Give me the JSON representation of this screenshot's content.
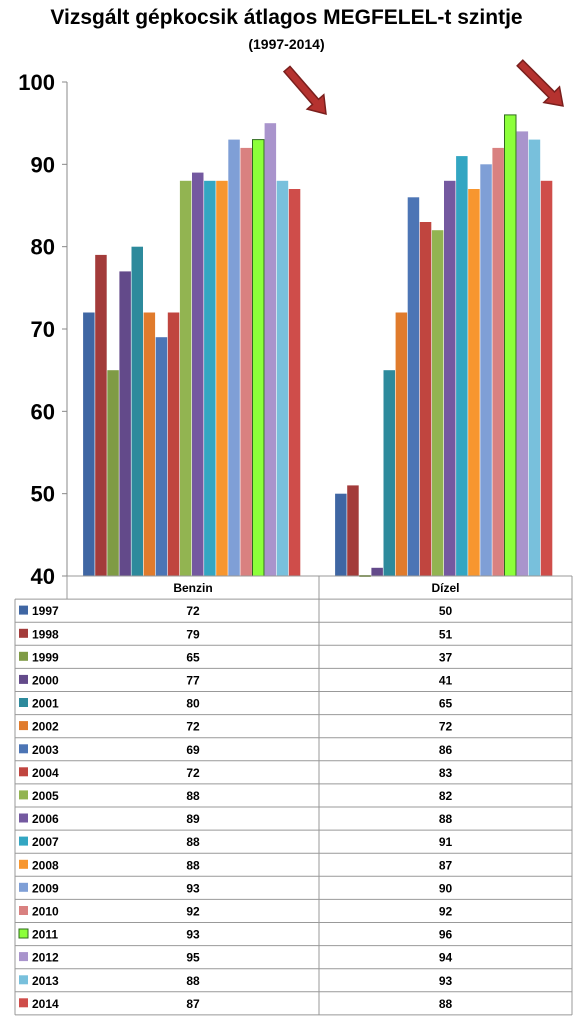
{
  "chart_data": {
    "type": "bar",
    "title": "Vizsgált gépkocsik átlagos MEGFELEL-t szintje",
    "subtitle": "(1997-2014)",
    "categories": [
      "Benzin",
      "Dízel"
    ],
    "ylim": [
      40,
      100
    ],
    "yticks": [
      40,
      50,
      60,
      70,
      80,
      90,
      100
    ],
    "grid": false,
    "legend": "data-table",
    "series": [
      {
        "name": "1997",
        "color": "#3f66a3",
        "values": [
          72,
          50
        ]
      },
      {
        "name": "1998",
        "color": "#a33b3a",
        "values": [
          79,
          51
        ]
      },
      {
        "name": "1999",
        "color": "#7f9b45",
        "values": [
          65,
          37
        ]
      },
      {
        "name": "2000",
        "color": "#634a8a",
        "values": [
          77,
          41
        ]
      },
      {
        "name": "2001",
        "color": "#2d8a9c",
        "values": [
          80,
          65
        ]
      },
      {
        "name": "2002",
        "color": "#e07b2c",
        "values": [
          72,
          72
        ]
      },
      {
        "name": "2003",
        "color": "#4c75b5",
        "values": [
          69,
          86
        ]
      },
      {
        "name": "2004",
        "color": "#c0453f",
        "values": [
          72,
          83
        ]
      },
      {
        "name": "2005",
        "color": "#92b451",
        "values": [
          88,
          82
        ]
      },
      {
        "name": "2006",
        "color": "#7459a0",
        "values": [
          89,
          88
        ]
      },
      {
        "name": "2007",
        "color": "#33a6c2",
        "values": [
          88,
          91
        ]
      },
      {
        "name": "2008",
        "color": "#f7962f",
        "values": [
          88,
          87
        ]
      },
      {
        "name": "2009",
        "color": "#7f9fd6",
        "values": [
          93,
          90
        ]
      },
      {
        "name": "2010",
        "color": "#d98180",
        "values": [
          92,
          92
        ]
      },
      {
        "name": "2011",
        "color": "#8cff3a",
        "values": [
          93,
          96
        ]
      },
      {
        "name": "2012",
        "color": "#a994cc",
        "values": [
          95,
          94
        ]
      },
      {
        "name": "2013",
        "color": "#78c0dc",
        "values": [
          88,
          93
        ]
      },
      {
        "name": "2014",
        "color": "#cf4d4a",
        "values": [
          87,
          88
        ]
      }
    ],
    "annotations": [
      "arrow-down-right",
      "arrow-down-right"
    ]
  }
}
